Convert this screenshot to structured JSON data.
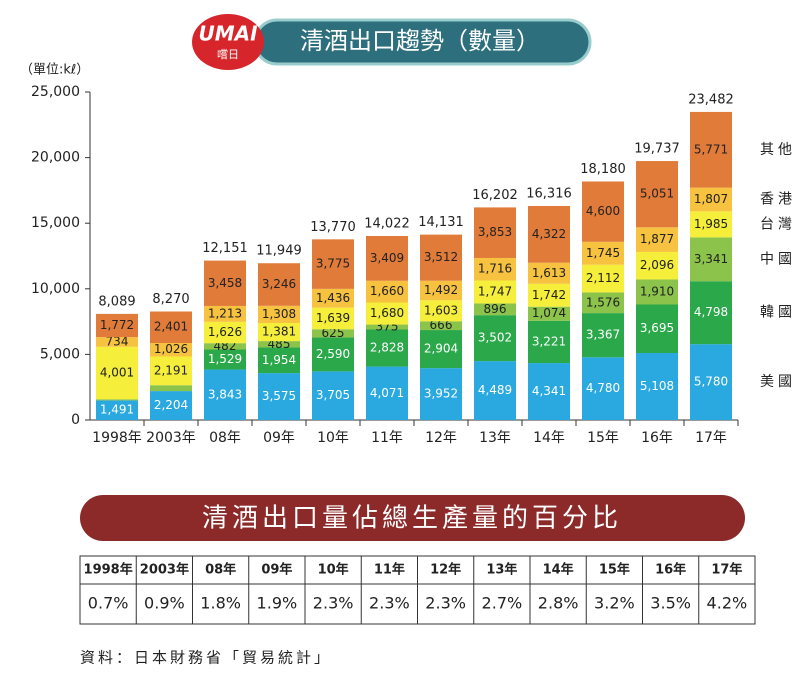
{
  "logo": {
    "name": "UMAI",
    "sub": "嚐日"
  },
  "chart_data": {
    "type": "stacked_bar",
    "title": "清酒出口趨勢（數量）",
    "y_label": "（單位:kℓ）",
    "categories": [
      "1998年",
      "2003年",
      "08年",
      "09年",
      "10年",
      "11年",
      "12年",
      "13年",
      "14年",
      "15年",
      "16年",
      "17年"
    ],
    "ylim": [
      0,
      25000
    ],
    "yticks": [
      0,
      {
        "value": 5000,
        "label": "5,000"
      },
      {
        "value": 10000,
        "label": "10,000"
      },
      {
        "value": 15000,
        "label": "15,000"
      },
      {
        "value": 20000,
        "label": "20,000"
      },
      {
        "value": 25000,
        "label": "25,000"
      }
    ],
    "series": [
      {
        "name": "美國",
        "color": "#29a9e0",
        "values": [
          1491,
          2204,
          3843,
          3575,
          3705,
          4071,
          3952,
          4489,
          4341,
          4780,
          5108,
          5780
        ],
        "value_labels": [
          "1,491",
          "2,204",
          "3,843",
          "3,575",
          "3,705",
          "4,071",
          "3,952",
          "4,489",
          "4,341",
          "4,780",
          "5,108",
          "5,780"
        ]
      },
      {
        "name": "韓國",
        "color": "#2aa84a",
        "values": [
          null,
          null,
          1529,
          1954,
          2590,
          2828,
          2904,
          3502,
          3221,
          3367,
          3695,
          4798
        ],
        "value_labels": [
          null,
          null,
          "1,529",
          "1,954",
          "2,590",
          "2,828",
          "2,904",
          "3,502",
          "3,221",
          "3,367",
          "3,695",
          "4,798"
        ]
      },
      {
        "name": "中國",
        "color": "#8cc34a",
        "values": [
          91,
          448,
          482,
          485,
          625,
          375,
          666,
          896,
          1074,
          1576,
          1910,
          3341
        ],
        "value_labels": [
          null,
          null,
          "482",
          "485",
          "625",
          "375",
          "666",
          "896",
          "1,074",
          "1,576",
          "1,910",
          "3,341"
        ]
      },
      {
        "name": "台灣",
        "color": "#f5ee3a",
        "values": [
          4001,
          2191,
          1626,
          1381,
          1639,
          1680,
          1603,
          1747,
          1742,
          2112,
          2096,
          1985
        ],
        "value_labels": [
          "4,001",
          "2,191",
          "1,626",
          "1,381",
          "1,639",
          "1,680",
          "1,603",
          "1,747",
          "1,742",
          "2,112",
          "2,096",
          "1,985"
        ]
      },
      {
        "name": "香港",
        "color": "#f7c23f",
        "values": [
          734,
          1026,
          1213,
          1308,
          1436,
          1660,
          1492,
          1716,
          1613,
          1745,
          1877,
          1807
        ],
        "value_labels": [
          "734",
          "1,026",
          "1,213",
          "1,308",
          "1,436",
          "1,660",
          "1,492",
          "1,716",
          "1,613",
          "1,745",
          "1,877",
          "1,807"
        ]
      },
      {
        "name": "其他",
        "color": "#e07b39",
        "values": [
          1772,
          2401,
          3458,
          3246,
          3775,
          3409,
          3512,
          3853,
          4322,
          4600,
          5051,
          5771
        ],
        "value_labels": [
          "1,772",
          "2,401",
          "3,458",
          "3,246",
          "3,775",
          "3,409",
          "3,512",
          "3,853",
          "4,322",
          "4,600",
          "5,051",
          "5,771"
        ]
      }
    ],
    "totals": [
      8089,
      8270,
      12151,
      11949,
      13770,
      14022,
      14131,
      16202,
      16316,
      18180,
      19737,
      23482
    ],
    "total_labels": [
      "8,089",
      "8,270",
      "12,151",
      "11,949",
      "13,770",
      "14,022",
      "14,131",
      "16,202",
      "16,316",
      "18,180",
      "19,737",
      "23,482"
    ]
  },
  "table": {
    "title": "清酒出口量佔總生產量的百分比",
    "header": [
      "1998年",
      "2003年",
      "08年",
      "09年",
      "10年",
      "11年",
      "12年",
      "13年",
      "14年",
      "15年",
      "16年",
      "17年"
    ],
    "row": [
      "0.7%",
      "0.9%",
      "1.8%",
      "1.9%",
      "2.3%",
      "2.3%",
      "2.3%",
      "2.7%",
      "2.8%",
      "3.2%",
      "3.5%",
      "4.2%"
    ]
  },
  "source": "資料：日本財務省「貿易統計」"
}
